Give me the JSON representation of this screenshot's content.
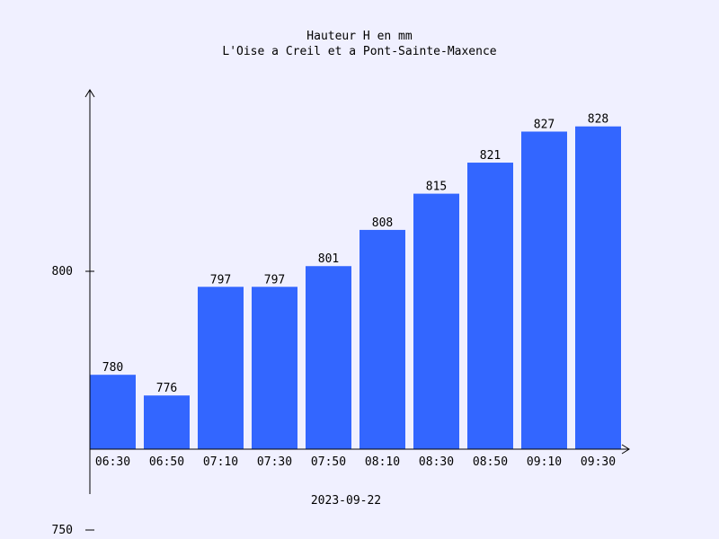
{
  "chart_data": {
    "type": "bar",
    "title": "Hauteur H en mm",
    "subtitle": "L'Oise a Creil et a Pont-Sainte-Maxence",
    "xlabel": "2023-09-22",
    "ylabel": "",
    "categories": [
      "06:30",
      "06:50",
      "07:10",
      "07:30",
      "07:50",
      "08:10",
      "08:30",
      "08:50",
      "09:10",
      "09:30"
    ],
    "values": [
      780,
      776,
      797,
      797,
      801,
      808,
      815,
      821,
      827,
      828
    ],
    "yticks": [
      750,
      800
    ],
    "ylim": [
      750,
      850
    ],
    "grid": false,
    "bar_color": "#3366ff"
  }
}
